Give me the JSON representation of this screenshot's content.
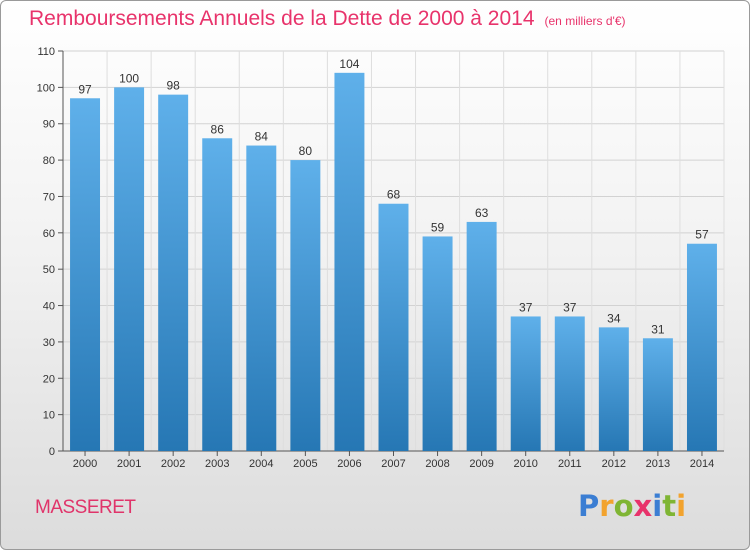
{
  "header": {
    "title": "Remboursements Annuels de la Dette de 2000 à 2014",
    "unit": "(en milliers d'€)"
  },
  "footer": {
    "commune": "MASSERET",
    "logo": "Proxiti"
  },
  "colors": {
    "title": "#e8336b",
    "bar_top": "#5fb0ea",
    "bar_bottom": "#2677b4",
    "logo_letters": [
      "#3b7ed3",
      "#f2a32e",
      "#7fb534",
      "#e8336b",
      "#3b7ed3",
      "#7fb534",
      "#f2a32e"
    ]
  },
  "chart_data": {
    "type": "bar",
    "title": "Remboursements Annuels de la Dette de 2000 à 2014",
    "categories": [
      "2000",
      "2001",
      "2002",
      "2003",
      "2004",
      "2005",
      "2006",
      "2007",
      "2008",
      "2009",
      "2010",
      "2011",
      "2012",
      "2013",
      "2014"
    ],
    "values": [
      97,
      100,
      98,
      86,
      84,
      80,
      104,
      68,
      59,
      63,
      37,
      37,
      34,
      31,
      57
    ],
    "ylim": [
      0,
      110
    ],
    "yticks": [
      0,
      10,
      20,
      30,
      40,
      50,
      60,
      70,
      80,
      90,
      100,
      110
    ],
    "grid": true,
    "data_labels": true,
    "legend": "none"
  }
}
